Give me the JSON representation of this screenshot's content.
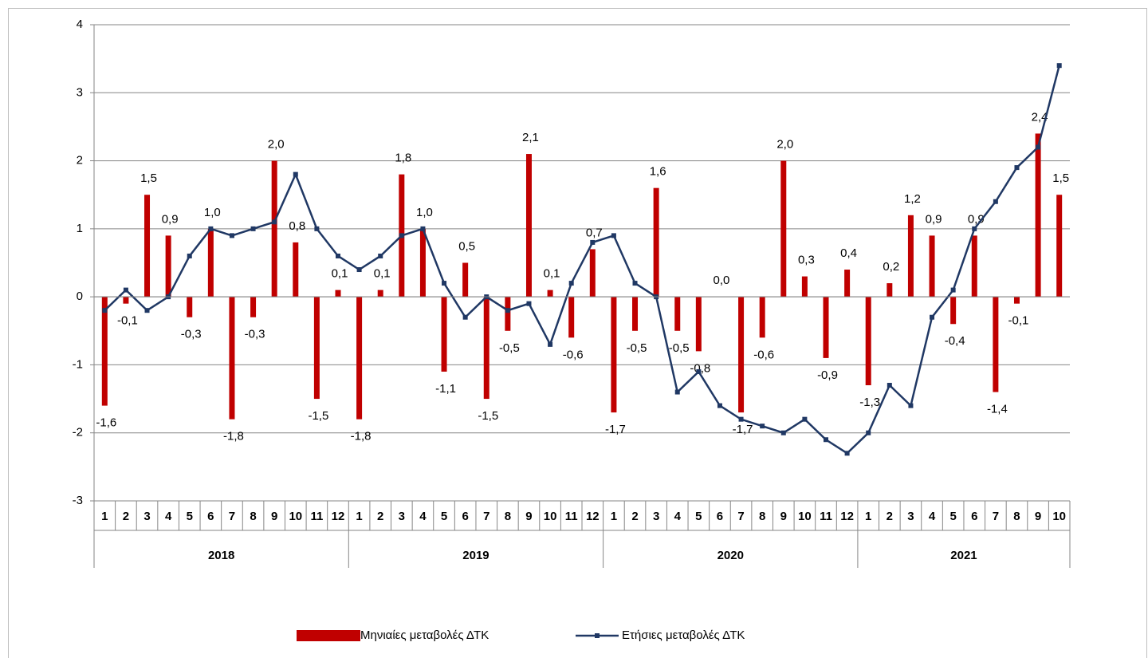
{
  "chart_data": {
    "type": "combo",
    "groups": [
      {
        "label": "2018",
        "categories": [
          "1",
          "2",
          "3",
          "4",
          "5",
          "6",
          "7",
          "8",
          "9",
          "10",
          "11",
          "12"
        ]
      },
      {
        "label": "2019",
        "categories": [
          "1",
          "2",
          "3",
          "4",
          "5",
          "6",
          "7",
          "8",
          "9",
          "10",
          "11",
          "12"
        ]
      },
      {
        "label": "2020",
        "categories": [
          "1",
          "2",
          "3",
          "4",
          "5",
          "6",
          "7",
          "8",
          "9",
          "10",
          "11",
          "12"
        ]
      },
      {
        "label": "2021",
        "categories": [
          "1",
          "2",
          "3",
          "4",
          "5",
          "6",
          "7",
          "8",
          "9",
          "10"
        ]
      }
    ],
    "ylim": [
      -3,
      4
    ],
    "yticks": [
      -3,
      -2,
      -1,
      0,
      1,
      2,
      3,
      4
    ],
    "grid": true,
    "legend": "bottom",
    "series": [
      {
        "name": "Μηνιαίες μεταβολές ΔΤΚ",
        "type": "bar",
        "color": "#c00000",
        "values": [
          -1.6,
          -0.1,
          1.5,
          0.9,
          -0.3,
          1.0,
          -1.8,
          -0.3,
          2.0,
          0.8,
          -1.5,
          0.1,
          -1.8,
          0.1,
          1.8,
          1.0,
          -1.1,
          0.5,
          -1.5,
          -0.5,
          2.1,
          0.1,
          -0.6,
          0.7,
          -1.7,
          -0.5,
          1.6,
          -0.5,
          -0.8,
          0.0,
          -1.7,
          -0.6,
          2.0,
          0.3,
          -0.9,
          0.4,
          -1.3,
          0.2,
          1.2,
          0.9,
          -0.4,
          0.9,
          -1.4,
          -0.1,
          2.4,
          1.5
        ],
        "value_labels": [
          "-1,6",
          "-0,1",
          "1,5",
          "0,9",
          "-0,3",
          "1,0",
          "-1,8",
          "-0,3",
          "2,0",
          "0,8",
          "-1,5",
          "0,1",
          "-1,8",
          "0,1",
          "1,8",
          "1,0",
          "-1,1",
          "0,5",
          "-1,5",
          "-0,5",
          "2,1",
          "0,1",
          "-0,6",
          "0,7",
          "-1,7",
          "-0,5",
          "1,6",
          "-0,5",
          "-0,8",
          "0,0",
          "-1,7",
          "-0,6",
          "2,0",
          "0,3",
          "-0,9",
          "0,4",
          "-1,3",
          "0,2",
          "1,2",
          "0,9",
          "-0,4",
          "0,9",
          "-1,4",
          "-0,1",
          "2,4",
          "1,5"
        ]
      },
      {
        "name": "Ετήσιες μεταβολές ΔΤΚ",
        "type": "line",
        "color": "#203864",
        "values": [
          -0.2,
          0.1,
          -0.2,
          0.0,
          0.6,
          1.0,
          0.9,
          1.0,
          1.1,
          1.8,
          1.0,
          0.6,
          0.4,
          0.6,
          0.9,
          1.0,
          0.2,
          -0.3,
          0.0,
          -0.2,
          -0.1,
          -0.7,
          0.2,
          0.8,
          0.9,
          0.2,
          0.0,
          -1.4,
          -1.1,
          -1.6,
          -1.8,
          -1.9,
          -2.0,
          -1.8,
          -2.1,
          -2.3,
          -2.0,
          -1.3,
          -1.6,
          -0.3,
          0.1,
          1.0,
          1.4,
          1.9,
          2.2,
          3.4
        ]
      }
    ]
  }
}
